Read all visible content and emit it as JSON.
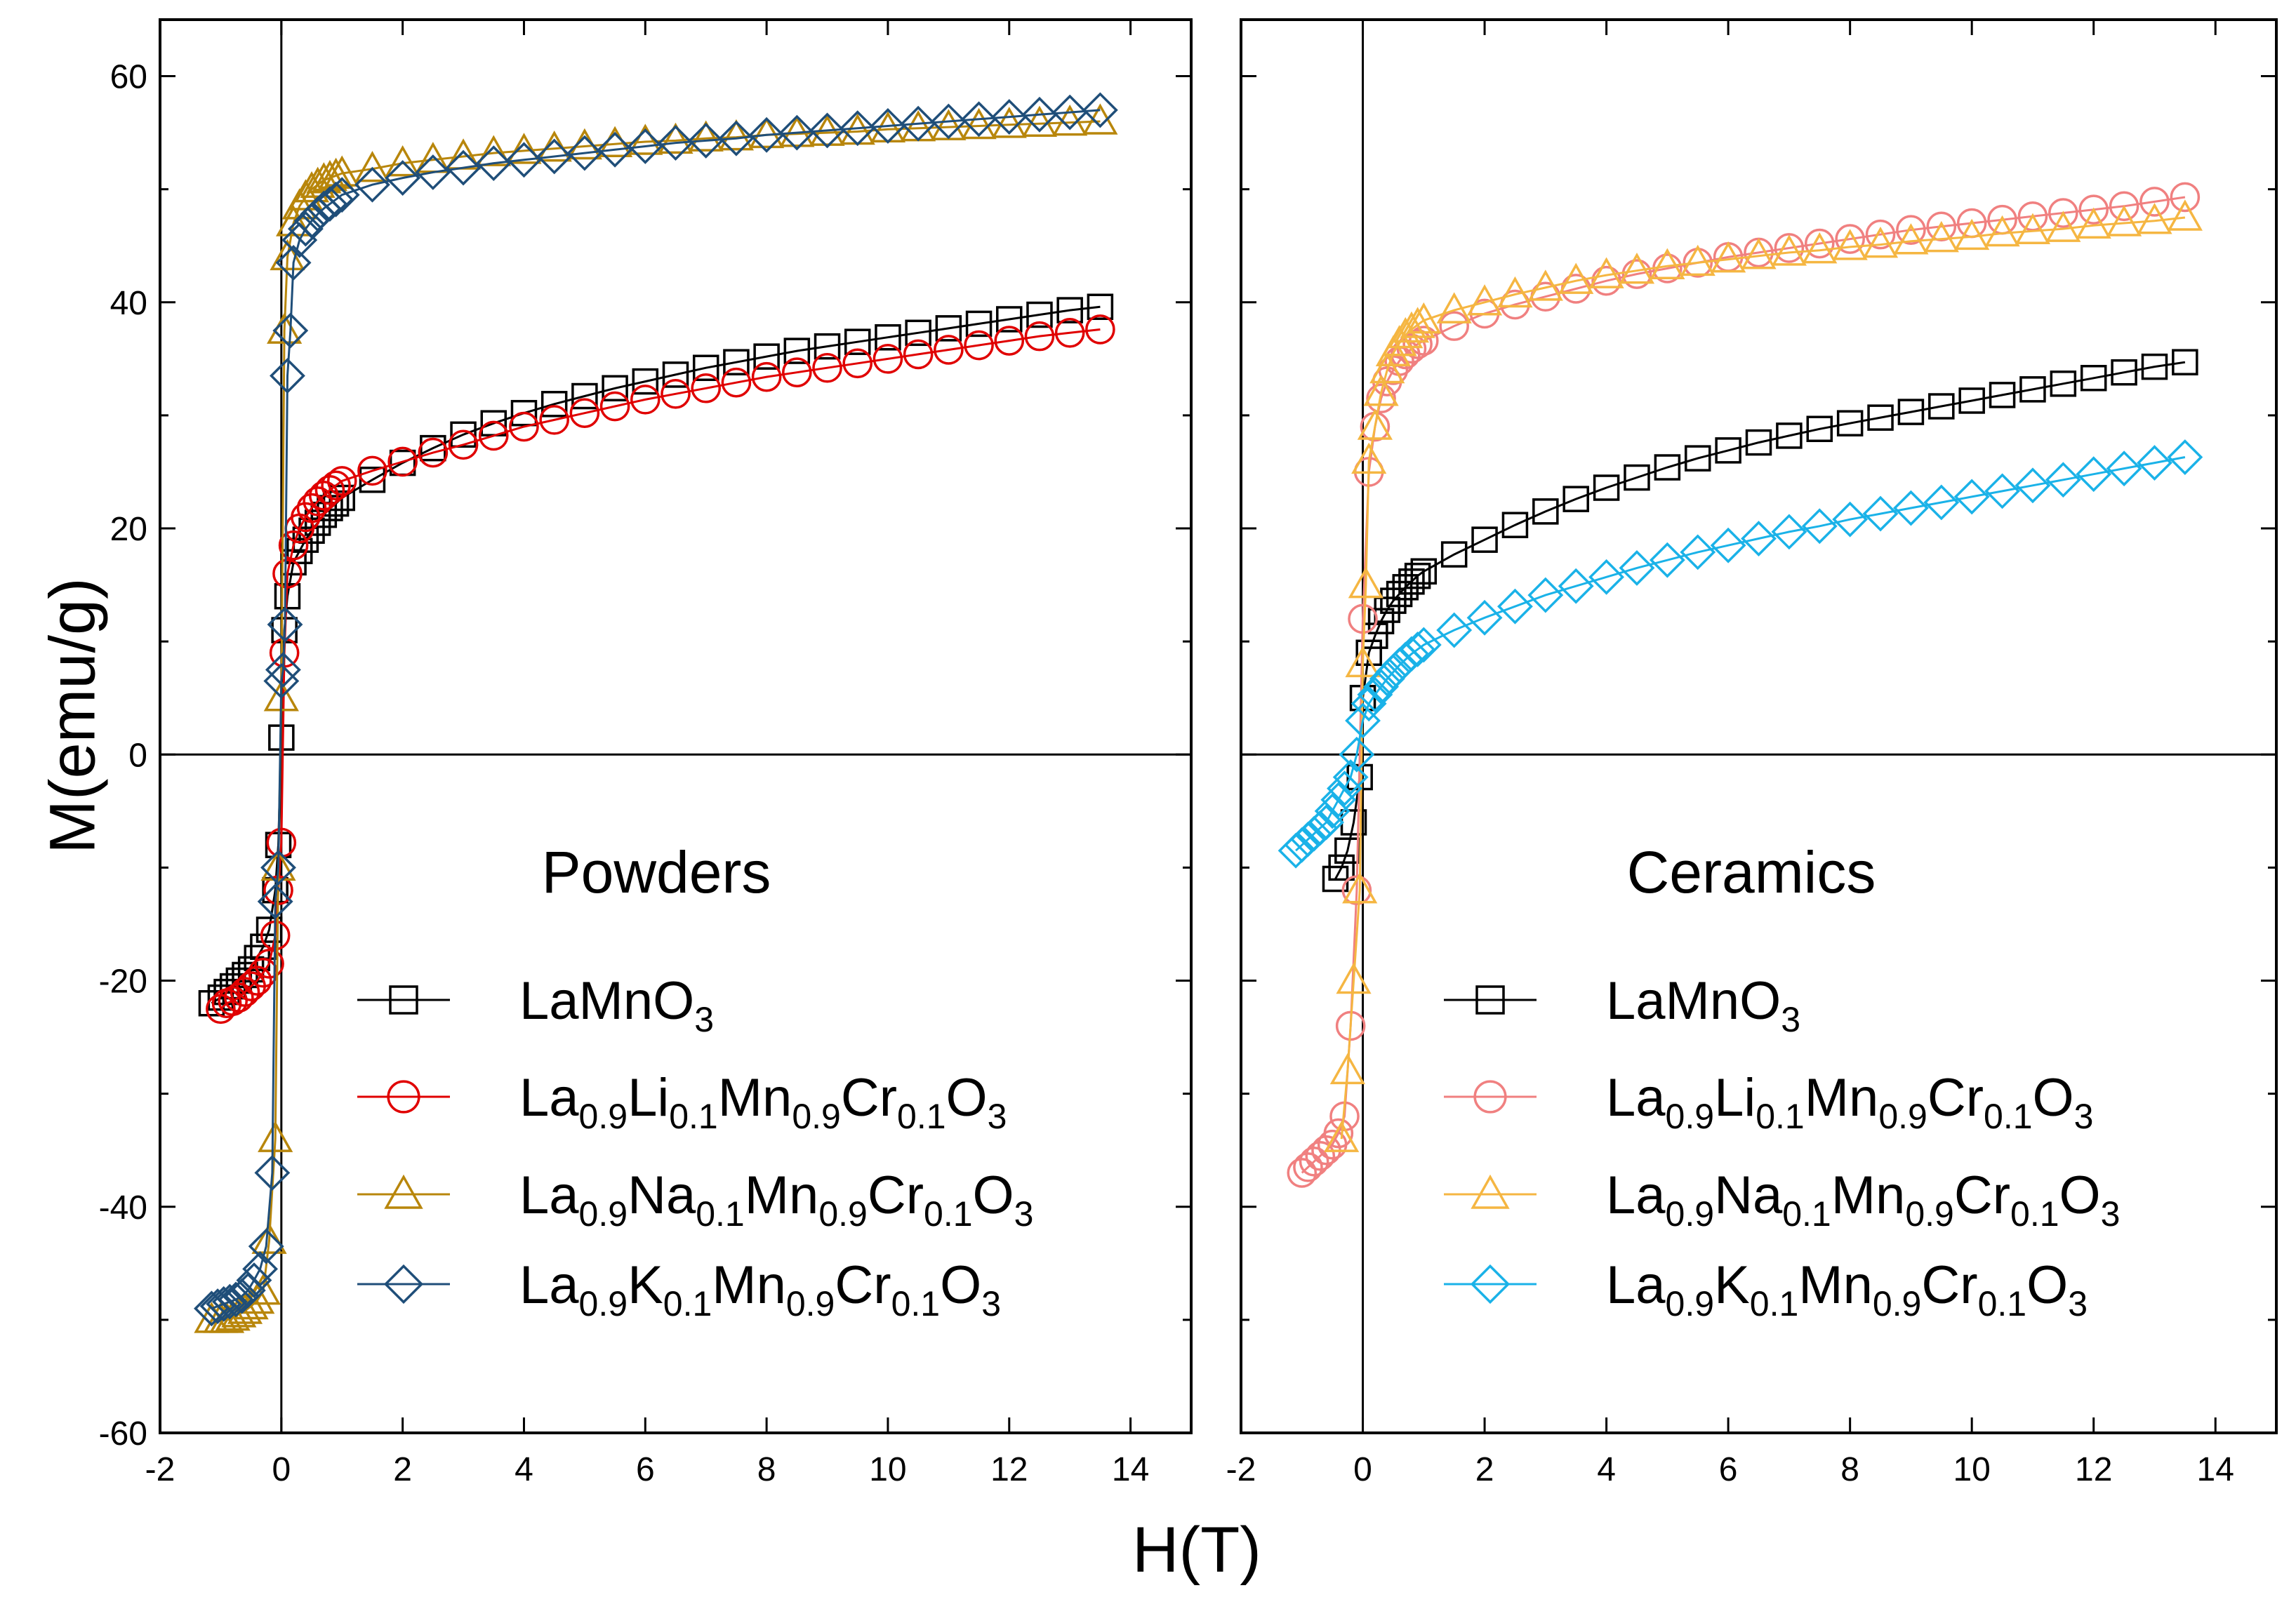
{
  "figure": {
    "ylabel": "M(emu/g)",
    "xlabel": "H(T)"
  },
  "chart_data": [
    {
      "type": "scatter",
      "title": "Powders",
      "xlabel": "H(T)",
      "ylabel": "M(emu/g)",
      "xlim": [
        -2,
        15
      ],
      "ylim": [
        -60,
        65
      ],
      "xticks": [
        -2,
        0,
        2,
        4,
        6,
        8,
        10,
        12,
        14
      ],
      "yticks": [
        -60,
        -40,
        -20,
        0,
        20,
        40,
        60
      ],
      "xtick_labels": [
        "-2",
        "0",
        "2",
        "4",
        "6",
        "8",
        "10",
        "12",
        "14"
      ],
      "ytick_labels": [
        "-60",
        "-40",
        "-20",
        "0",
        "20",
        "40",
        "60"
      ],
      "series": [
        {
          "name": "LaMnO3",
          "legend_main": [
            "LaMnO",
            "3"
          ],
          "marker": "square",
          "color": "#000000",
          "x": [
            -1.15,
            -1.0,
            -0.9,
            -0.8,
            -0.7,
            -0.6,
            -0.5,
            -0.4,
            -0.3,
            -0.2,
            -0.1,
            -0.05,
            0,
            0.05,
            0.1,
            0.2,
            0.3,
            0.4,
            0.5,
            0.6,
            0.7,
            0.8,
            0.9,
            1.0,
            1.5,
            2,
            2.5,
            3,
            3.5,
            4,
            4.5,
            5,
            5.5,
            6,
            6.5,
            7,
            7.5,
            8,
            8.5,
            9,
            9.5,
            10,
            10.5,
            11,
            11.5,
            12,
            12.5,
            13,
            13.5
          ],
          "y": [
            -22,
            -21.5,
            -21,
            -20.5,
            -20,
            -19.5,
            -19,
            -18,
            -17,
            -15.5,
            -12,
            -8,
            1.5,
            11,
            14,
            17,
            18,
            19,
            19.8,
            20.5,
            21.2,
            21.8,
            22.2,
            22.7,
            24.3,
            25.8,
            27.1,
            28.3,
            29.3,
            30.2,
            31,
            31.7,
            32.4,
            33,
            33.6,
            34.2,
            34.7,
            35.2,
            35.7,
            36.1,
            36.5,
            36.9,
            37.3,
            37.7,
            38.1,
            38.5,
            38.9,
            39.3,
            39.6
          ]
        },
        {
          "name": "La0.9Li0.1Mn0.9Cr0.1O3",
          "legend_main": [
            "La",
            "0.9",
            "Li",
            "0.1",
            "Mn",
            "0.9",
            "Cr",
            "0.1",
            "O",
            "3"
          ],
          "marker": "circle",
          "color": "#e00000",
          "x": [
            -1.0,
            -0.9,
            -0.8,
            -0.7,
            -0.6,
            -0.5,
            -0.4,
            -0.3,
            -0.2,
            -0.1,
            -0.05,
            0,
            0.05,
            0.1,
            0.2,
            0.3,
            0.4,
            0.5,
            0.6,
            0.7,
            0.8,
            0.9,
            1.0,
            1.5,
            2,
            2.5,
            3,
            3.5,
            4,
            4.5,
            5,
            5.5,
            6,
            6.5,
            7,
            7.5,
            8,
            8.5,
            9,
            9.5,
            10,
            10.5,
            11,
            11.5,
            12,
            12.5,
            13,
            13.5
          ],
          "y": [
            -22.5,
            -22,
            -21.8,
            -21.5,
            -21,
            -20.5,
            -20,
            -19.3,
            -18.5,
            -16,
            -12,
            -7.8,
            9,
            16,
            18.5,
            20,
            21,
            21.8,
            22.4,
            22.9,
            23.4,
            23.8,
            24.2,
            25.1,
            25.9,
            26.7,
            27.4,
            28.2,
            29,
            29.6,
            30.2,
            30.8,
            31.4,
            31.9,
            32.4,
            32.9,
            33.4,
            33.8,
            34.2,
            34.6,
            35,
            35.4,
            35.8,
            36.2,
            36.6,
            37,
            37.3,
            37.6
          ]
        },
        {
          "name": "La0.9Na0.1Mn0.9Cr0.1O3",
          "legend_main": [
            "La",
            "0.9",
            "Na",
            "0.1",
            "Mn",
            "0.9",
            "Cr",
            "0.1",
            "O",
            "3"
          ],
          "marker": "triangle",
          "color": "#b8860b",
          "x": [
            -1.15,
            -1.0,
            -0.9,
            -0.8,
            -0.7,
            -0.6,
            -0.5,
            -0.4,
            -0.3,
            -0.2,
            -0.1,
            -0.05,
            0,
            0.05,
            0.1,
            0.2,
            0.3,
            0.4,
            0.5,
            0.6,
            0.7,
            0.8,
            0.9,
            1.0,
            1.5,
            2,
            2.5,
            3,
            3.5,
            4,
            4.5,
            5,
            5.5,
            6,
            6.5,
            7,
            7.5,
            8,
            8.5,
            9,
            9.5,
            10,
            10.5,
            11,
            11.5,
            12,
            12.5,
            13,
            13.5
          ],
          "y": [
            -50,
            -50,
            -50,
            -49.8,
            -49.5,
            -49.2,
            -48.8,
            -48.3,
            -47.5,
            -43,
            -34,
            -10,
            5,
            37.5,
            44,
            47,
            48.5,
            49.3,
            50,
            50.4,
            50.8,
            51,
            51.2,
            51.4,
            51.8,
            52.3,
            52.6,
            52.9,
            53.2,
            53.4,
            53.6,
            53.8,
            54,
            54.2,
            54.3,
            54.5,
            54.6,
            54.8,
            54.9,
            55,
            55.1,
            55.3,
            55.4,
            55.5,
            55.6,
            55.7,
            55.8,
            55.9,
            56
          ]
        },
        {
          "name": "La0.9K0.1Mn0.9Cr0.1O3",
          "legend_main": [
            "La",
            "0.9",
            "K",
            "0.1",
            "Mn",
            "0.9",
            "Cr",
            "0.1",
            "O",
            "3"
          ],
          "marker": "diamond",
          "color": "#1f4e79",
          "x": [
            -1.15,
            -1.05,
            -0.95,
            -0.85,
            -0.75,
            -0.65,
            -0.55,
            -0.45,
            -0.35,
            -0.25,
            -0.15,
            -0.1,
            -0.05,
            0,
            0.03,
            0.06,
            0.1,
            0.15,
            0.2,
            0.3,
            0.4,
            0.5,
            0.6,
            0.7,
            0.8,
            0.9,
            1.0,
            1.5,
            2,
            2.5,
            3,
            3.5,
            4,
            4.5,
            5,
            5.5,
            6,
            6.5,
            7,
            7.5,
            8,
            8.5,
            9,
            9.5,
            10,
            10.5,
            11,
            11.5,
            12,
            12.5,
            13,
            13.5
          ],
          "y": [
            -49,
            -48.8,
            -48.6,
            -48.4,
            -48.2,
            -47.9,
            -47.4,
            -46.5,
            -45.5,
            -43.5,
            -37,
            -13,
            -10,
            6.5,
            7.5,
            11.5,
            33.5,
            37.5,
            43.5,
            45.5,
            46.5,
            47.2,
            47.8,
            48.3,
            48.7,
            49.1,
            49.5,
            50.4,
            51,
            51.5,
            51.9,
            52.3,
            52.6,
            52.9,
            53.2,
            53.5,
            53.8,
            54.1,
            54.3,
            54.5,
            54.8,
            55,
            55.2,
            55.4,
            55.6,
            55.8,
            56,
            56.2,
            56.4,
            56.6,
            56.8,
            57
          ]
        }
      ]
    },
    {
      "type": "scatter",
      "title": "Ceramics",
      "xlabel": "H(T)",
      "ylabel": "M(emu/g)",
      "xlim": [
        -2,
        15
      ],
      "ylim": [
        -60,
        65
      ],
      "xticks": [
        -2,
        0,
        2,
        4,
        6,
        8,
        10,
        12,
        14
      ],
      "yticks": [
        -60,
        -40,
        -20,
        0,
        20,
        40,
        60
      ],
      "xtick_labels": [
        "-2",
        "0",
        "2",
        "4",
        "6",
        "8",
        "10",
        "12",
        "14"
      ],
      "series": [
        {
          "name": "LaMnO3",
          "legend_main": [
            "LaMnO",
            "3"
          ],
          "marker": "square",
          "color": "#000000",
          "x": [
            -0.45,
            -0.35,
            -0.25,
            -0.15,
            -0.05,
            0,
            0.1,
            0.2,
            0.3,
            0.4,
            0.5,
            0.6,
            0.7,
            0.8,
            0.9,
            1.0,
            1.5,
            2,
            2.5,
            3,
            3.5,
            4,
            4.5,
            5,
            5.5,
            6,
            6.5,
            7,
            7.5,
            8,
            8.5,
            9,
            9.5,
            10,
            10.5,
            11,
            11.5,
            12,
            12.5,
            13,
            13.5
          ],
          "y": [
            -11,
            -10,
            -8.5,
            -6,
            -2,
            5,
            9,
            10.5,
            11.8,
            12.8,
            13.6,
            14.2,
            14.8,
            15.3,
            15.8,
            16.2,
            17.7,
            19,
            20.3,
            21.5,
            22.6,
            23.6,
            24.5,
            25.4,
            26.2,
            26.9,
            27.6,
            28.2,
            28.8,
            29.3,
            29.8,
            30.3,
            30.8,
            31.3,
            31.8,
            32.3,
            32.8,
            33.3,
            33.8,
            34.3,
            34.7
          ]
        },
        {
          "name": "La0.9Li0.1Mn0.9Cr0.1O3",
          "legend_main": [
            "La",
            "0.9",
            "Li",
            "0.1",
            "Mn",
            "0.9",
            "Cr",
            "0.1",
            "O",
            "3"
          ],
          "marker": "circle",
          "color": "#f08080",
          "x": [
            -1.0,
            -0.9,
            -0.8,
            -0.7,
            -0.6,
            -0.5,
            -0.4,
            -0.3,
            -0.2,
            -0.1,
            0,
            0.1,
            0.2,
            0.3,
            0.4,
            0.5,
            0.6,
            0.7,
            0.8,
            0.9,
            1.0,
            1.5,
            2,
            2.5,
            3,
            3.5,
            4,
            4.5,
            5,
            5.5,
            6,
            6.5,
            7,
            7.5,
            8,
            8.5,
            9,
            9.5,
            10,
            10.5,
            11,
            11.5,
            12,
            12.5,
            13,
            13.5
          ],
          "y": [
            -37,
            -36.5,
            -36,
            -35.5,
            -35,
            -34.5,
            -33.5,
            -32,
            -24,
            -12,
            12,
            25,
            29,
            31.5,
            33,
            34,
            34.8,
            35.4,
            35.9,
            36.3,
            36.6,
            37.9,
            39,
            39.8,
            40.5,
            41.2,
            41.9,
            42.5,
            43,
            43.5,
            44,
            44.4,
            44.8,
            45.2,
            45.6,
            46,
            46.4,
            46.7,
            47,
            47.3,
            47.6,
            47.9,
            48.2,
            48.5,
            48.9,
            49.3
          ]
        },
        {
          "name": "La0.9Na0.1Mn0.9Cr0.1O3",
          "legend_main": [
            "La",
            "0.9",
            "Na",
            "0.1",
            "Mn",
            "0.9",
            "Cr",
            "0.1",
            "O",
            "3"
          ],
          "marker": "triangle",
          "color": "#f5b642",
          "x": [
            -0.35,
            -0.25,
            -0.15,
            -0.05,
            0,
            0.05,
            0.1,
            0.2,
            0.3,
            0.4,
            0.5,
            0.6,
            0.7,
            0.8,
            0.9,
            1.0,
            1.5,
            2,
            2.5,
            3,
            3.5,
            4,
            4.5,
            5,
            5.5,
            6,
            6.5,
            7,
            7.5,
            8,
            8.5,
            9,
            9.5,
            10,
            10.5,
            11,
            11.5,
            12,
            12.5,
            13,
            13.5
          ],
          "y": [
            -34,
            -28,
            -20,
            -12,
            8,
            15,
            26,
            29,
            32,
            34,
            35.5,
            36.4,
            37.1,
            37.6,
            38,
            38.4,
            39.3,
            40,
            40.7,
            41.3,
            41.9,
            42.4,
            42.8,
            43.2,
            43.5,
            43.8,
            44.1,
            44.4,
            44.6,
            44.9,
            45.1,
            45.4,
            45.6,
            45.8,
            46.1,
            46.3,
            46.5,
            46.8,
            47,
            47.2,
            47.5
          ]
        },
        {
          "name": "La0.9K0.1Mn0.9Cr0.1O3",
          "legend_main": [
            "La",
            "0.9",
            "K",
            "0.1",
            "Mn",
            "0.9",
            "Cr",
            "0.1",
            "O",
            "3"
          ],
          "marker": "diamond",
          "color": "#1ab2e8",
          "x": [
            -1.1,
            -1.0,
            -0.9,
            -0.8,
            -0.7,
            -0.6,
            -0.5,
            -0.4,
            -0.3,
            -0.2,
            -0.1,
            0,
            0.1,
            0.2,
            0.3,
            0.4,
            0.5,
            0.6,
            0.7,
            0.8,
            0.9,
            1.0,
            1.5,
            2,
            2.5,
            3,
            3.5,
            4,
            4.5,
            5,
            5.5,
            6,
            6.5,
            7,
            7.5,
            8,
            8.5,
            9,
            9.5,
            10,
            10.5,
            11,
            11.5,
            12,
            12.5,
            13,
            13.5
          ],
          "y": [
            -8.5,
            -8,
            -7.5,
            -7,
            -6.5,
            -6,
            -5,
            -4,
            -3,
            -2,
            0,
            3,
            4.5,
            5.3,
            6,
            6.7,
            7.3,
            7.9,
            8.4,
            8.9,
            9.3,
            9.7,
            11,
            12.1,
            13.1,
            14.1,
            14.9,
            15.7,
            16.5,
            17.2,
            17.9,
            18.5,
            19.1,
            19.7,
            20.2,
            20.8,
            21.3,
            21.8,
            22.3,
            22.8,
            23.3,
            23.8,
            24.3,
            24.8,
            25.3,
            25.8,
            26.3
          ]
        }
      ]
    }
  ]
}
